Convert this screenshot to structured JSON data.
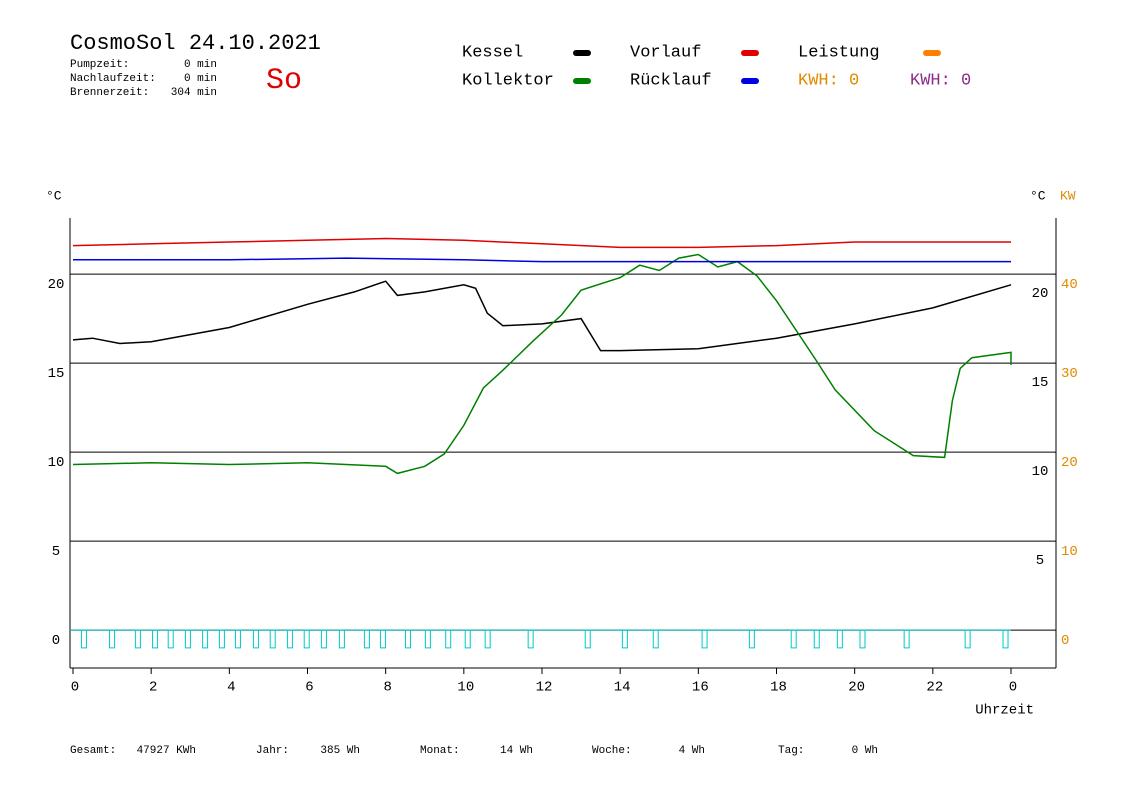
{
  "header": {
    "title": "CosmoSol 24.10.2021",
    "day": "So",
    "info": [
      {
        "label": "Pumpzeit:",
        "value": "0 min"
      },
      {
        "label": "Nachlaufzeit:",
        "value": "0 min"
      },
      {
        "label": "Brennerzeit:",
        "value": "304 min"
      }
    ]
  },
  "legend_extra": [
    {
      "name": "Leistung",
      "color": "#ff8000"
    }
  ],
  "kwh": [
    {
      "text": "KWH: 0",
      "color": "#e08a00"
    },
    {
      "text": "KWH: 0",
      "color": "#8b2c8b"
    }
  ],
  "footer": [
    {
      "label": "Gesamt:",
      "value": "47927 KWh"
    },
    {
      "label": "Jahr:",
      "value": "385 Wh"
    },
    {
      "label": "Monat:",
      "value": "14 Wh"
    },
    {
      "label": "Woche:",
      "value": "4 Wh"
    },
    {
      "label": "Tag:",
      "value": "0 Wh"
    }
  ],
  "chart_data": {
    "type": "line",
    "y_label": "°C",
    "y2_label_unit": "°C",
    "y2_label": "KW",
    "x_label": "Uhrzeit",
    "xlim": [
      0,
      24
    ],
    "xticks": [
      0,
      2,
      4,
      6,
      8,
      10,
      12,
      14,
      16,
      18,
      20,
      22,
      {
        "value": 24,
        "label": "0"
      }
    ],
    "ylim": [
      -2.13,
      23.15
    ],
    "yticks": [
      0,
      5,
      10,
      15,
      20
    ],
    "yticks_right": [
      5,
      10,
      15,
      20
    ],
    "y2lim": [
      -4.26,
      46.3
    ],
    "y2ticks": [
      0,
      10,
      20,
      30,
      40
    ],
    "y2color": "#e08a00",
    "grid": true,
    "series": [
      {
        "name": "Kessel",
        "color": "#000000",
        "x": [
          0,
          0.5,
          1.2,
          2,
          4,
          6,
          7.2,
          8,
          8.3,
          9,
          10,
          10.3,
          10.6,
          11,
          12,
          13,
          13.5,
          14,
          16,
          18,
          20,
          22,
          24
        ],
        "values": [
          16.3,
          16.4,
          16.1,
          16.2,
          17.0,
          18.3,
          19.0,
          19.6,
          18.8,
          19.0,
          19.4,
          19.2,
          17.8,
          17.1,
          17.2,
          17.5,
          15.7,
          15.7,
          15.8,
          16.4,
          17.2,
          18.1,
          19.4
        ]
      },
      {
        "name": "Kollektor",
        "color": "#008000",
        "x": [
          0,
          2,
          4,
          6,
          8,
          8.3,
          9,
          9.5,
          10,
          10.5,
          11,
          11.8,
          12.5,
          13,
          14,
          14.5,
          15,
          15.5,
          16,
          16.5,
          17,
          17.5,
          18,
          19,
          19.5,
          20.5,
          21.5,
          22.3,
          22.5,
          22.7,
          23,
          24,
          24
        ],
        "values": [
          9.3,
          9.4,
          9.3,
          9.4,
          9.2,
          8.8,
          9.2,
          9.9,
          11.5,
          13.6,
          14.6,
          16.3,
          17.7,
          19.1,
          19.8,
          20.5,
          20.2,
          20.9,
          21.1,
          20.4,
          20.7,
          19.9,
          18.5,
          15.2,
          13.5,
          11.2,
          9.8,
          9.7,
          12.9,
          14.7,
          15.3,
          15.6,
          14.9
        ]
      },
      {
        "name": "Vorlauf",
        "color": "#e00000",
        "x": [
          0,
          2,
          4,
          6,
          8,
          10,
          12,
          14,
          16,
          18,
          20,
          22,
          24
        ],
        "values": [
          21.6,
          21.7,
          21.8,
          21.9,
          22.0,
          21.9,
          21.7,
          21.5,
          21.5,
          21.6,
          21.8,
          21.8,
          21.8
        ]
      },
      {
        "name": "Rücklauf",
        "color": "#0000e0",
        "x": [
          0,
          4,
          7,
          10,
          12,
          16,
          20,
          24
        ],
        "values": [
          20.8,
          20.8,
          20.9,
          20.8,
          20.7,
          20.7,
          20.7,
          20.7
        ]
      }
    ],
    "pulses": {
      "color": "#00c8c8",
      "low": -1,
      "x": [
        0.28,
        1.0,
        1.66,
        2.1,
        2.5,
        2.94,
        3.38,
        3.81,
        4.22,
        4.68,
        5.11,
        5.55,
        5.98,
        6.42,
        6.88,
        7.52,
        7.93,
        8.57,
        9.08,
        9.6,
        10.1,
        10.61,
        11.71,
        13.17,
        14.12,
        14.91,
        16.16,
        17.37,
        18.44,
        19.03,
        19.62,
        20.2,
        21.33,
        22.89,
        23.86
      ]
    }
  }
}
